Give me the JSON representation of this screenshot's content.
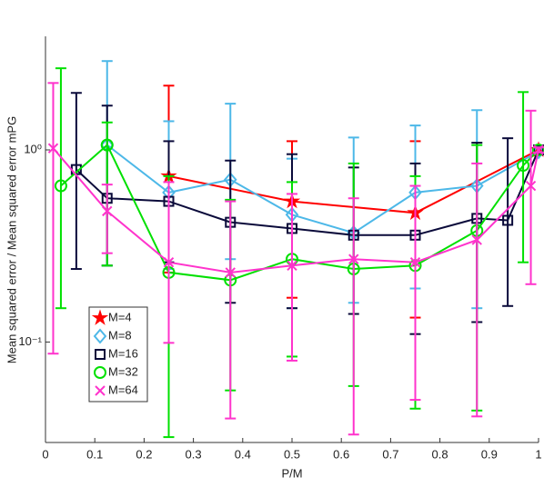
{
  "chart_data": {
    "type": "line",
    "xlabel": "P/M",
    "ylabel": "Mean squared error / Mean squared error mPG",
    "xlim": [
      0,
      1
    ],
    "xticks": [
      0,
      0.1,
      0.2,
      0.3,
      0.4,
      0.5,
      0.6,
      0.7,
      0.8,
      0.9,
      1
    ],
    "ylim": [
      0.03,
      3.9
    ],
    "yticks": [
      {
        "value": 0.1,
        "label": "10⁻¹"
      },
      {
        "value": 1,
        "label": "10⁰"
      }
    ],
    "log_y": true,
    "legend": "lower left",
    "series": [
      {
        "name": "M=4",
        "color": "#ff0000",
        "marker": "star",
        "x": [
          0.25,
          0.5,
          0.75,
          1
        ],
        "values": [
          0.73,
          0.54,
          0.47,
          1.0
        ],
        "lower": [
          0.23,
          0.17,
          0.134,
          0.97
        ],
        "upper": [
          2.16,
          1.11,
          1.11,
          1.03
        ]
      },
      {
        "name": "M=8",
        "color": "#4db8e8",
        "marker": "diamond",
        "x": [
          0.125,
          0.25,
          0.375,
          0.5,
          0.625,
          0.75,
          0.875,
          1
        ],
        "values": [
          1.06,
          0.6,
          0.7,
          0.46,
          0.37,
          0.6,
          0.65,
          0.98
        ],
        "lower": [
          0.25,
          0.24,
          0.27,
          0.15,
          0.16,
          0.19,
          0.15,
          0.95
        ],
        "upper": [
          2.9,
          1.41,
          1.74,
          0.9,
          1.16,
          1.34,
          1.61,
          1.02
        ]
      },
      {
        "name": "M=16",
        "color": "#0a0a3a",
        "marker": "square",
        "x": [
          0.0625,
          0.125,
          0.25,
          0.375,
          0.5,
          0.625,
          0.75,
          0.875,
          0.9375,
          1
        ],
        "values": [
          0.79,
          0.56,
          0.54,
          0.42,
          0.39,
          0.36,
          0.36,
          0.44,
          0.43,
          1.0
        ],
        "lower": [
          0.24,
          0.25,
          0.26,
          0.16,
          0.15,
          0.14,
          0.11,
          0.127,
          0.154,
          0.97
        ],
        "upper": [
          1.98,
          1.7,
          1.11,
          0.88,
          0.95,
          0.81,
          0.85,
          1.09,
          1.15,
          1.03
        ]
      },
      {
        "name": "M=32",
        "color": "#00e000",
        "marker": "circle",
        "x": [
          0.03125,
          0.125,
          0.25,
          0.375,
          0.5,
          0.625,
          0.75,
          0.875,
          0.96875,
          1
        ],
        "values": [
          0.65,
          1.06,
          0.23,
          0.21,
          0.27,
          0.24,
          0.25,
          0.38,
          0.83,
          1.0
        ],
        "lower": [
          0.15,
          0.25,
          0.032,
          0.056,
          0.084,
          0.059,
          0.045,
          0.044,
          0.26,
          0.97
        ],
        "upper": [
          2.66,
          1.39,
          0.73,
          0.55,
          0.68,
          0.85,
          0.73,
          1.06,
          2.0,
          1.03
        ]
      },
      {
        "name": "M=64",
        "color": "#ff33cc",
        "marker": "x",
        "x": [
          0.015625,
          0.125,
          0.25,
          0.375,
          0.5,
          0.625,
          0.75,
          0.875,
          0.984375,
          1
        ],
        "values": [
          1.02,
          0.48,
          0.26,
          0.23,
          0.25,
          0.27,
          0.26,
          0.34,
          0.65,
          1.0
        ],
        "lower": [
          0.087,
          0.29,
          0.099,
          0.04,
          0.08,
          0.033,
          0.05,
          0.041,
          0.2,
          0.97
        ],
        "upper": [
          2.23,
          0.66,
          0.68,
          0.54,
          0.59,
          0.56,
          0.65,
          0.85,
          1.6,
          1.03
        ]
      }
    ]
  }
}
